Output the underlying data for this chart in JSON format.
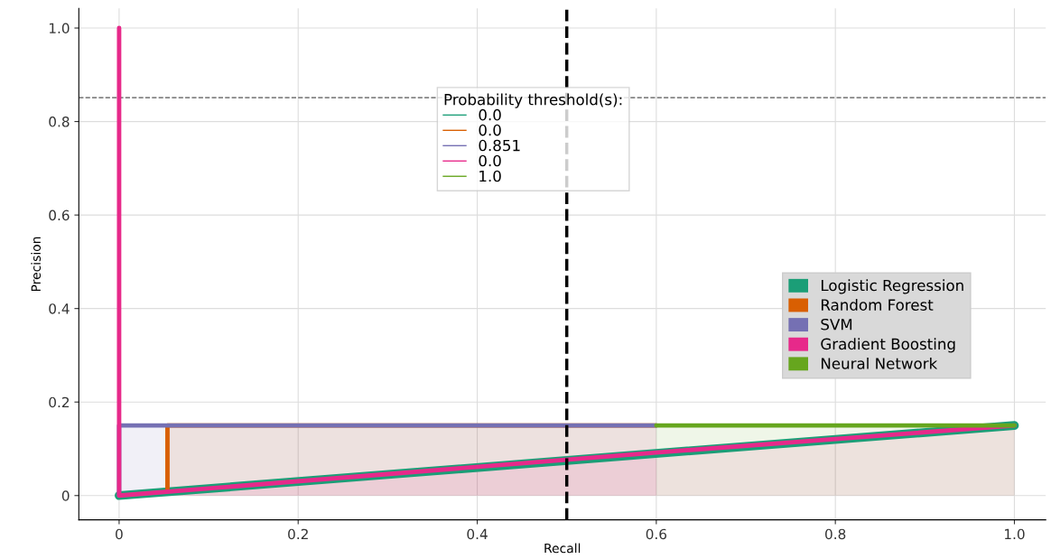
{
  "chart_data": {
    "type": "line",
    "xlabel": "Recall",
    "ylabel": "Precision",
    "legend_title": "Probability threshold(s):",
    "annotations": [
      "0.0",
      "0.0",
      "0.851",
      "0.0",
      "1.0"
    ],
    "series": [
      {
        "name": "Logistic Regression",
        "color": "#1b9e77",
        "x": [
          0,
          1
        ],
        "values": [
          0,
          0.15
        ]
      },
      {
        "name": "Random Forest",
        "type": "area",
        "color": "#d95f02",
        "x": [
          0.054,
          0.054,
          0.6
        ],
        "values": [
          0.01,
          0.15,
          0.15
        ]
      },
      {
        "name": "SVM",
        "type": "area",
        "color": "#7570b3",
        "x": [
          0,
          0,
          0.6
        ],
        "values": [
          0,
          0.15,
          0.15
        ]
      },
      {
        "name": "Gradient Boosting",
        "type": "area",
        "color": "#e7298a",
        "x": [
          0,
          0,
          0.6,
          1
        ],
        "values": [
          1.0,
          0,
          0.092,
          0.15
        ]
      },
      {
        "name": "Neural Network",
        "type": "area",
        "color": "#66a61e",
        "x": [
          0.6,
          1
        ],
        "values": [
          0.15,
          0.15
        ]
      }
    ],
    "ref_lines": [
      {
        "axis": "y",
        "value": 0.851,
        "color": "#555555",
        "line_style": "dashed"
      },
      {
        "axis": "x",
        "value": 0.5,
        "color": "#000000",
        "line_style": "dashed"
      }
    ],
    "xlim": [
      -0.045,
      1.035
    ],
    "ylim": [
      -0.052,
      1.042
    ],
    "xticks": [
      {
        "value": 0,
        "label": "0"
      },
      0.2,
      0.4,
      0.6,
      0.8,
      {
        "value": 1,
        "label": "1.0"
      }
    ],
    "yticks": [
      {
        "value": 0,
        "label": "0"
      },
      0.2,
      0.4,
      0.6,
      0.8,
      {
        "value": 1,
        "label": "1.0"
      }
    ],
    "grid": true,
    "legend": "right"
  }
}
